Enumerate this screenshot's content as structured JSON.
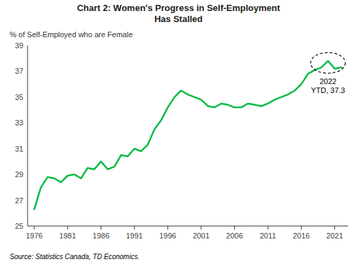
{
  "chart_data": {
    "type": "line",
    "title": "Chart 2: Women's Progress in Self-Employment\nHas Stalled",
    "y_label": "% of Self-Employed who are Female",
    "source": "Source:  Statistics Canada, TD Economics.",
    "annotation": "2022\nYTD, 37.3",
    "color": "#00BB44",
    "grid": false,
    "x": [
      1976,
      1977,
      1978,
      1979,
      1980,
      1981,
      1982,
      1983,
      1984,
      1985,
      1986,
      1987,
      1988,
      1989,
      1990,
      1991,
      1992,
      1993,
      1994,
      1995,
      1996,
      1997,
      1998,
      1999,
      2000,
      2001,
      2002,
      2003,
      2004,
      2005,
      2006,
      2007,
      2008,
      2009,
      2010,
      2011,
      2012,
      2013,
      2014,
      2015,
      2016,
      2017,
      2018,
      2019,
      2020,
      2021,
      2022
    ],
    "values": [
      26.3,
      28.0,
      28.8,
      28.7,
      28.4,
      28.9,
      29.0,
      28.7,
      29.5,
      29.4,
      30.0,
      29.4,
      29.6,
      30.5,
      30.4,
      31.0,
      30.8,
      31.3,
      32.5,
      33.2,
      34.2,
      35.0,
      35.5,
      35.2,
      35.0,
      34.8,
      34.3,
      34.2,
      34.5,
      34.4,
      34.2,
      34.2,
      34.5,
      34.4,
      34.3,
      34.5,
      34.8,
      35.0,
      35.2,
      35.5,
      36.0,
      36.8,
      37.1,
      37.3,
      37.8,
      37.2,
      37.3
    ],
    "xlim": [
      1975,
      2023
    ],
    "xticks": [
      1976,
      1981,
      1986,
      1991,
      1996,
      2001,
      2006,
      2011,
      2016,
      2021
    ],
    "ylim": [
      25,
      39
    ],
    "yticks": [
      25,
      27,
      29,
      31,
      33,
      35,
      37,
      39
    ],
    "ellipse": {
      "x": 2020.0,
      "y": 37.65,
      "width": 5.2,
      "height": 1.6
    }
  }
}
